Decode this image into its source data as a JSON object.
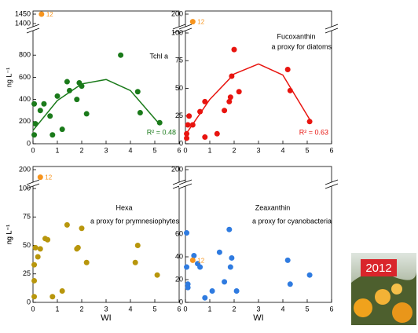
{
  "chart_data": [
    {
      "type": "scatter",
      "title": "Tchl a",
      "color": "#1a7a1a",
      "ylabel": "ng L⁻¹",
      "xlim": [
        0,
        6
      ],
      "xticks": [
        0,
        1,
        2,
        3,
        4,
        5,
        6
      ],
      "ylim": [
        0,
        1000
      ],
      "yticks": [
        0,
        200,
        400,
        600,
        800
      ],
      "ybreak": {
        "ylim": [
          1400,
          1450
        ],
        "yticks": [
          1400,
          1450
        ]
      },
      "x": [
        0.05,
        0.05,
        0.1,
        0.3,
        0.45,
        0.7,
        0.8,
        1.0,
        1.2,
        1.4,
        1.5,
        1.8,
        1.9,
        2.0,
        2.2,
        3.6,
        4.3,
        4.4,
        5.2
      ],
      "values": [
        80,
        360,
        180,
        300,
        360,
        250,
        80,
        430,
        130,
        560,
        480,
        400,
        550,
        520,
        270,
        800,
        470,
        280,
        190
      ],
      "highlight": {
        "x": 0.35,
        "y": 1450,
        "label": "12",
        "color": "#f7941d"
      },
      "fit": {
        "x": [
          0,
          1,
          2,
          3,
          4,
          5.1
        ],
        "y": [
          120,
          390,
          540,
          580,
          480,
          200
        ]
      },
      "fit_label": "R² = 0.48"
    },
    {
      "type": "scatter",
      "title": "Fucoxanthin",
      "subtitle": "a proxy for diatoms",
      "color": "#e8140f",
      "xlim": [
        0,
        6
      ],
      "xticks": [
        0,
        1,
        2,
        3,
        4,
        5,
        6
      ],
      "ylim": [
        0,
        100
      ],
      "yticks": [
        0,
        25,
        50,
        75,
        100
      ],
      "ybreak": {
        "ylim": [
          190,
          200
        ],
        "yticks": [
          200
        ]
      },
      "x": [
        0.05,
        0.05,
        0.1,
        0.15,
        0.3,
        0.6,
        0.8,
        0.8,
        1.3,
        1.6,
        1.8,
        1.85,
        1.9,
        2.0,
        2.2,
        4.2,
        4.3,
        5.1
      ],
      "values": [
        5,
        9,
        17,
        25,
        17,
        29,
        38,
        6,
        9,
        30,
        38,
        42,
        61,
        85,
        47,
        67,
        48,
        20
      ],
      "highlight": {
        "x": 0.3,
        "y": 192,
        "label": "12",
        "color": "#f7941d"
      },
      "fit": {
        "x": [
          0,
          1,
          2,
          3,
          4,
          5.1
        ],
        "y": [
          8,
          40,
          63,
          72,
          62,
          22
        ]
      },
      "fit_label": "R² = 0.63"
    },
    {
      "type": "scatter",
      "title": "Hexa",
      "subtitle": "a proxy for prymnesiophytes",
      "color": "#b8960c",
      "ylabel": "ng L⁻¹",
      "xlabel": "WI",
      "xlim": [
        0,
        6
      ],
      "xticks": [
        0,
        1,
        2,
        3,
        4,
        5,
        6
      ],
      "ylim": [
        0,
        100
      ],
      "yticks": [
        0,
        25,
        50,
        75,
        100
      ],
      "ybreak": {
        "ylim": [
          190,
          200
        ],
        "yticks": [
          200
        ]
      },
      "x": [
        0.05,
        0.05,
        0.05,
        0.1,
        0.2,
        0.3,
        0.5,
        0.6,
        0.8,
        1.2,
        1.4,
        1.8,
        1.85,
        2.0,
        2.2,
        4.2,
        4.3,
        5.1
      ],
      "values": [
        5,
        19,
        33,
        48,
        40,
        47,
        56,
        55,
        5,
        10,
        68,
        47,
        48,
        65,
        35,
        35,
        50,
        24
      ],
      "highlight": {
        "x": 0.3,
        "y": 192,
        "label": "12",
        "color": "#f7941d"
      }
    },
    {
      "type": "scatter",
      "title": "Zeaxanthin",
      "subtitle": "a proxy for cyanobacteria",
      "color": "#2f7be0",
      "ylabel": "ng L⁻¹",
      "xlabel": "WI",
      "xlim": [
        0,
        6
      ],
      "xticks": [
        0,
        1,
        2,
        3,
        4,
        5,
        6
      ],
      "ylim": [
        0,
        100
      ],
      "yticks": [
        0,
        20,
        40,
        60
      ],
      "ybreak": {
        "ylim": [
          190,
          200
        ],
        "yticks": [
          200
        ]
      },
      "x": [
        0.05,
        0.05,
        0.1,
        0.1,
        0.35,
        0.5,
        0.6,
        0.8,
        1.1,
        1.4,
        1.6,
        1.8,
        1.85,
        1.9,
        2.1,
        4.2,
        4.3,
        5.1
      ],
      "values": [
        31,
        61,
        16,
        13,
        41,
        34,
        31,
        4,
        10,
        44,
        18,
        64,
        31,
        39,
        10,
        37,
        16,
        24
      ],
      "highlight": {
        "x": 0.3,
        "y": 37,
        "label": "12",
        "color": "#f7941d"
      }
    }
  ],
  "photo": {
    "label": "2012"
  }
}
